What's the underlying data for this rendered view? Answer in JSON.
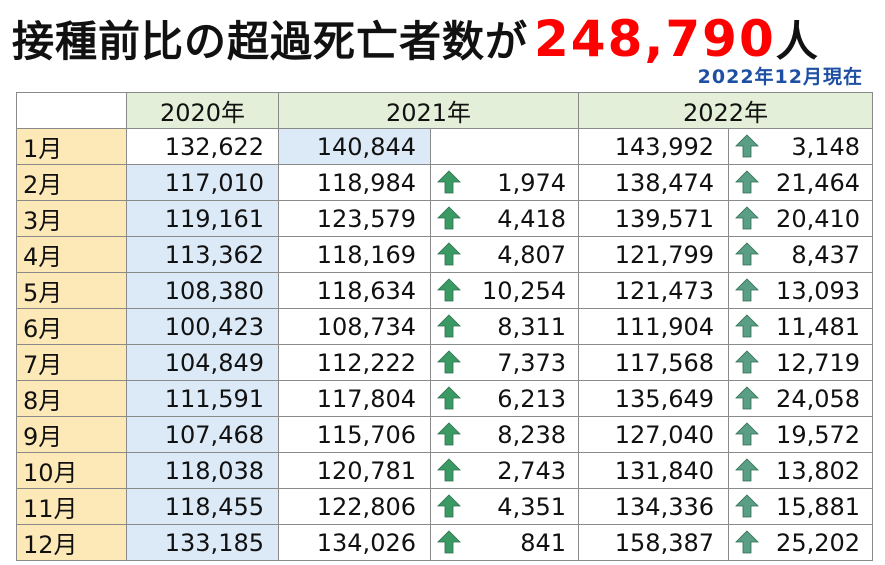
{
  "header": {
    "title_prefix": "接種前比の超過死亡者数が",
    "title_number": "248,790",
    "title_suffix": "人",
    "as_of": "2022年12月現在"
  },
  "table": {
    "columns": [
      "2020年",
      "2021年",
      "2022年"
    ],
    "rows": [
      {
        "month": "1月",
        "y2020": "132,622",
        "y2021": "140,844",
        "inc2021": "",
        "y2022": "143,992",
        "inc2022": "3,148"
      },
      {
        "month": "2月",
        "y2020": "117,010",
        "y2021": "118,984",
        "inc2021": "1,974",
        "y2022": "138,474",
        "inc2022": "21,464"
      },
      {
        "month": "3月",
        "y2020": "119,161",
        "y2021": "123,579",
        "inc2021": "4,418",
        "y2022": "139,571",
        "inc2022": "20,410"
      },
      {
        "month": "4月",
        "y2020": "113,362",
        "y2021": "118,169",
        "inc2021": "4,807",
        "y2022": "121,799",
        "inc2022": "8,437"
      },
      {
        "month": "5月",
        "y2020": "108,380",
        "y2021": "118,634",
        "inc2021": "10,254",
        "y2022": "121,473",
        "inc2022": "13,093"
      },
      {
        "month": "6月",
        "y2020": "100,423",
        "y2021": "108,734",
        "inc2021": "8,311",
        "y2022": "111,904",
        "inc2022": "11,481"
      },
      {
        "month": "7月",
        "y2020": "104,849",
        "y2021": "112,222",
        "inc2021": "7,373",
        "y2022": "117,568",
        "inc2022": "12,719"
      },
      {
        "month": "8月",
        "y2020": "111,591",
        "y2021": "117,804",
        "inc2021": "6,213",
        "y2022": "135,649",
        "inc2022": "24,058"
      },
      {
        "month": "9月",
        "y2020": "107,468",
        "y2021": "115,706",
        "inc2021": "8,238",
        "y2022": "127,040",
        "inc2022": "19,572"
      },
      {
        "month": "10月",
        "y2020": "118,038",
        "y2021": "120,781",
        "inc2021": "2,743",
        "y2022": "131,840",
        "inc2022": "13,802"
      },
      {
        "month": "11月",
        "y2020": "118,455",
        "y2021": "122,806",
        "inc2021": "4,351",
        "y2022": "134,336",
        "inc2022": "15,881"
      },
      {
        "month": "12月",
        "y2020": "133,185",
        "y2021": "134,026",
        "inc2021": "841",
        "y2022": "158,387",
        "inc2022": "25,202"
      }
    ]
  },
  "colors": {
    "title_number": "#ff0000",
    "as_of_text": "#1f4fa3",
    "month_cell_bg": "#fde9b7",
    "year_header_bg": "#e3efd8",
    "baseline_cell_bg": "#dce9f6",
    "arrow_2021": "#3a9a63",
    "arrow_2022": "#5a9e87"
  },
  "icons": {
    "increase": "up-arrow-icon"
  }
}
